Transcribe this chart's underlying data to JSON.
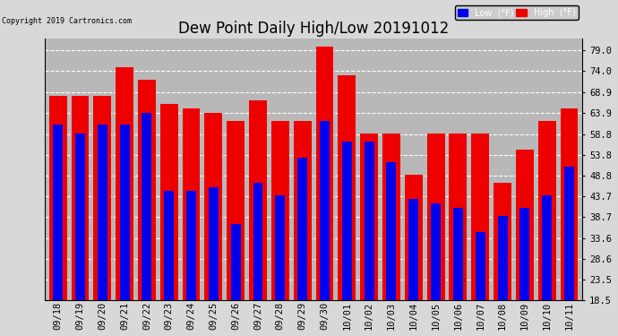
{
  "title": "Dew Point Daily High/Low 20191012",
  "copyright": "Copyright 2019 Cartronics.com",
  "dates": [
    "09/18",
    "09/19",
    "09/20",
    "09/21",
    "09/22",
    "09/23",
    "09/24",
    "09/25",
    "09/26",
    "09/27",
    "09/28",
    "09/29",
    "09/30",
    "10/01",
    "10/02",
    "10/03",
    "10/04",
    "10/05",
    "10/06",
    "10/07",
    "10/08",
    "10/09",
    "10/10",
    "10/11"
  ],
  "low_values": [
    61,
    59,
    61,
    61,
    64,
    45,
    45,
    46,
    37,
    47,
    44,
    53,
    62,
    57,
    57,
    52,
    43,
    42,
    41,
    35,
    39,
    41,
    44,
    51
  ],
  "high_values": [
    68,
    68,
    68,
    75,
    72,
    66,
    65,
    64,
    62,
    67,
    62,
    62,
    80,
    73,
    59,
    59,
    49,
    59,
    59,
    59,
    47,
    55,
    62,
    65
  ],
  "low_color": "#0000EE",
  "high_color": "#EE0000",
  "bg_color": "#D8D8D8",
  "plot_bg_color": "#B8B8B8",
  "grid_color": "#FFFFFF",
  "ylim_min": 18.5,
  "ylim_max": 82.0,
  "yticks": [
    18.5,
    23.5,
    28.6,
    33.6,
    38.7,
    43.7,
    48.8,
    53.8,
    58.8,
    63.9,
    68.9,
    74.0,
    79.0
  ],
  "ytick_labels": [
    "18.5",
    "23.5",
    "28.6",
    "33.6",
    "38.7",
    "43.7",
    "48.8",
    "53.8",
    "58.8",
    "63.9",
    "68.9",
    "74.0",
    "79.0"
  ],
  "title_fontsize": 12,
  "tick_fontsize": 7.5,
  "legend_low_label": "Low  (°F)",
  "legend_high_label": "High  (°F)",
  "bar_width": 0.8,
  "figwidth": 6.9,
  "figheight": 3.75,
  "dpi": 100
}
